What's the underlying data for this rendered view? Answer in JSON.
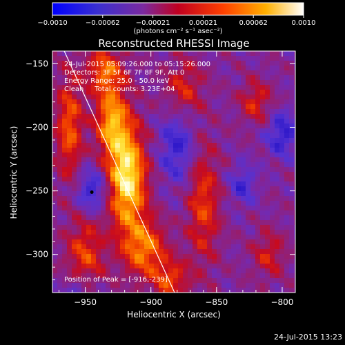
{
  "colorbar": {
    "tick_labels": [
      "−0.0010",
      "−0.00062",
      "−0.00021",
      "0.00021",
      "0.00062",
      "0.0010"
    ],
    "unit_label": "(photons cm⁻² s⁻¹ asec⁻²)",
    "range": [
      -0.001,
      0.001
    ],
    "colors": [
      "#0000ff",
      "#5a2fc0",
      "#9a2a6a",
      "#d40010",
      "#ff5a00",
      "#ffc000",
      "#ffffff"
    ]
  },
  "chart_data": {
    "type": "heatmap",
    "title": "Reconstructed RHESSI Image",
    "xlabel": "Heliocentric X (arcsec)",
    "ylabel": "Heliocentric Y (arcsec)",
    "xlim": [
      -975,
      -790
    ],
    "ylim": [
      -330,
      -140
    ],
    "x_ticks": [
      -950,
      -900,
      -850,
      -800
    ],
    "x_tick_labels": [
      "−950",
      "−900",
      "−850",
      "−800"
    ],
    "y_ticks": [
      -300,
      -250,
      -200,
      -150
    ],
    "y_tick_labels": [
      "−300",
      "−250",
      "−200",
      "−150"
    ],
    "annotations": {
      "time_range": "24-Jul-2015 05:09:26.000 to 05:15:26.000",
      "detectors": "Detectors: 3F 5F 6F 7F 8F 9F, Att 0",
      "energy_range": "Energy Range: 25.0 - 50.0 keV",
      "clean_counts": "Clean     Total counts: 3.23E+04",
      "peak": "Position of Peak = [-916,-239]"
    },
    "peak": [
      -916,
      -239
    ],
    "limb_line": [
      [
        -966,
        -140
      ],
      [
        -882,
        -330
      ]
    ],
    "grid": false
  },
  "footer": {
    "timestamp": "24-Jul-2015 13:23"
  }
}
